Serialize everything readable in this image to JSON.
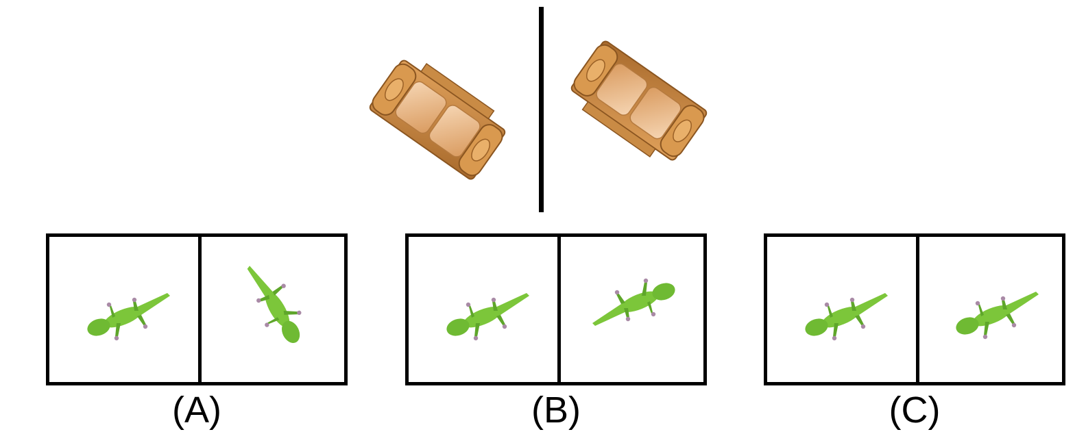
{
  "reference": {
    "object": "sofa",
    "left_view": "sofa-icon",
    "right_view": "sofa-icon"
  },
  "options": [
    {
      "label": "(A)",
      "left_icon": "lizard-icon",
      "right_icon": "lizard-icon"
    },
    {
      "label": "(B)",
      "left_icon": "lizard-icon",
      "right_icon": "lizard-icon"
    },
    {
      "label": "(C)",
      "left_icon": "lizard-icon",
      "right_icon": "lizard-icon"
    }
  ],
  "colors": {
    "lizard": "#7cc63a",
    "lizard_dark": "#5ea62a",
    "lizard_feet": "#a98aa6",
    "sofa_frame": "#c58a45",
    "sofa_cushion": "#e9b98a",
    "line": "#000000"
  }
}
